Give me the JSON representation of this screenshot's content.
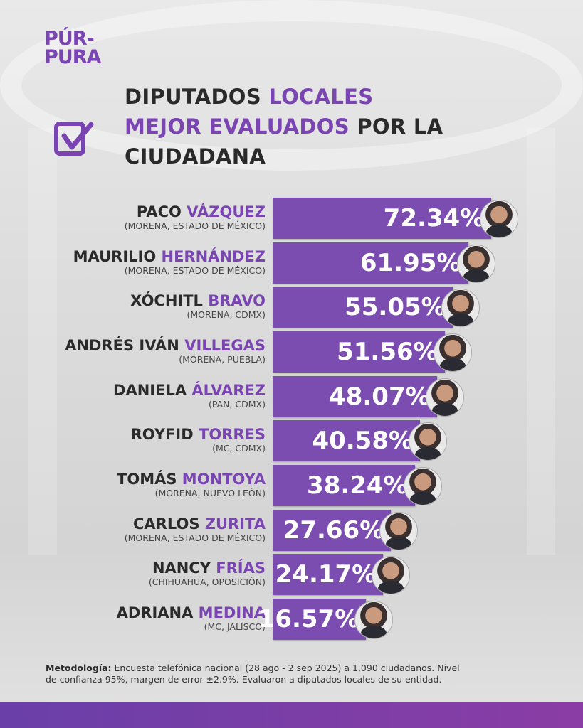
{
  "logo": {
    "line1": "PÚR-",
    "line2": "PURA"
  },
  "title": {
    "part1": "DIPUTADOS ",
    "part2": "LOCALES",
    "part3": "MEJOR EVALUADOS",
    "part4": " POR LA",
    "part5": "CIUDADANA"
  },
  "colors": {
    "accent": "#7a45b3",
    "bar": "#7b4db0",
    "text": "#2a2a2a"
  },
  "chart_data": {
    "type": "bar",
    "orientation": "horizontal",
    "categories": [
      "Paco Vázquez",
      "Maurilio Hernández",
      "Xóchitl Bravo",
      "Andrés Iván Villegas",
      "Daniela Álvarez",
      "Royfid Torres",
      "Tomás Montoya",
      "Carlos Zurita",
      "Nancy Frías",
      "Adriana Medina"
    ],
    "values": [
      72.34,
      61.95,
      55.05,
      51.56,
      48.07,
      40.58,
      38.24,
      27.66,
      24.17,
      16.57
    ],
    "unit": "%",
    "rows": [
      {
        "first": "PACO ",
        "last": "VÁZQUEZ",
        "sub": "(MORENA, ESTADO DE MÉXICO)",
        "label": "72.34%"
      },
      {
        "first": "MAURILIO ",
        "last": "HERNÁNDEZ",
        "sub": "(MORENA, ESTADO DE MÉXICO)",
        "label": "61.95%"
      },
      {
        "first": "XÓCHITL ",
        "last": "BRAVO",
        "sub": "(MORENA, CDMX)",
        "label": "55.05%"
      },
      {
        "first": "ANDRÉS IVÁN ",
        "last": "VILLEGAS",
        "sub": "(MORENA, PUEBLA)",
        "label": "51.56%"
      },
      {
        "first": "DANIELA ",
        "last": "ÁLVAREZ",
        "sub": "(PAN, CDMX)",
        "label": "48.07%"
      },
      {
        "first": "ROYFID ",
        "last": "TORRES",
        "sub": "(MC, CDMX)",
        "label": "40.58%"
      },
      {
        "first": "TOMÁS ",
        "last": "MONTOYA",
        "sub": "(MORENA, NUEVO LEÓN)",
        "label": "38.24%"
      },
      {
        "first": "CARLOS ",
        "last": "ZURITA",
        "sub": "(MORENA, ESTADO DE MÉXICO)",
        "label": "27.66%"
      },
      {
        "first": "NANCY ",
        "last": "FRÍAS",
        "sub": "(CHIHUAHUA, OPOSICIÓN)",
        "label": "24.17%"
      },
      {
        "first": "ADRIANA ",
        "last": "MEDINA",
        "sub": "(MC, JALISCO)",
        "label": "16.57%"
      }
    ]
  },
  "methodology": {
    "label": "Metodología:",
    "text": " Encuesta telefónica nacional (28 ago - 2 sep 2025) a 1,090 ciudadanos. Nivel de confianza 95%, margen de error ±2.9%. Evaluaron a diputados locales de su entidad."
  }
}
